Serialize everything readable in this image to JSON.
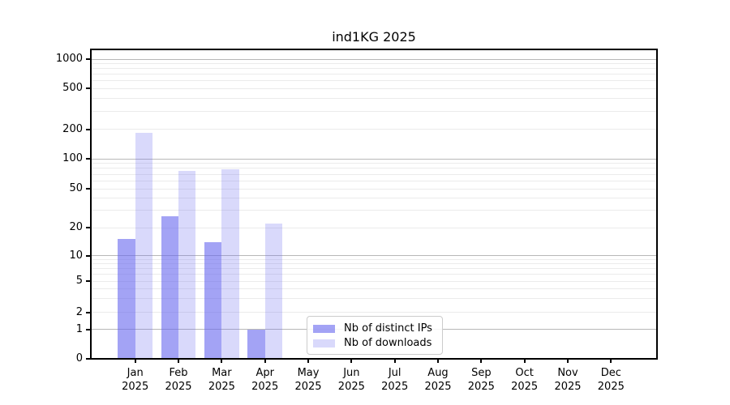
{
  "chart_data": {
    "type": "bar",
    "title": "ind1KG 2025",
    "yscale": "symlog",
    "ylim": [
      0,
      1000
    ],
    "y_tick_values": [
      0,
      1,
      2,
      5,
      10,
      20,
      50,
      100,
      200,
      500,
      1000
    ],
    "x_tick_months": [
      "Jan",
      "Feb",
      "Mar",
      "Apr",
      "May",
      "Jun",
      "Jul",
      "Aug",
      "Sep",
      "Oct",
      "Nov",
      "Dec"
    ],
    "x_tick_year": "2025",
    "grid": "on",
    "legend_position": "lower center",
    "series": [
      {
        "name": "Nb of distinct IPs",
        "base_color": "#6666ee",
        "alpha": 0.6,
        "rendered_color": "#a3a3f5",
        "values": [
          15,
          26,
          14,
          1,
          0,
          0,
          0,
          0,
          0,
          0,
          0,
          0
        ]
      },
      {
        "name": "Nb of downloads",
        "base_color": "#6666ee",
        "alpha": 0.25,
        "rendered_color": "#d9d9fb",
        "values": [
          182,
          76,
          79,
          22,
          0,
          0,
          0,
          0,
          0,
          0,
          0,
          0
        ]
      }
    ]
  }
}
